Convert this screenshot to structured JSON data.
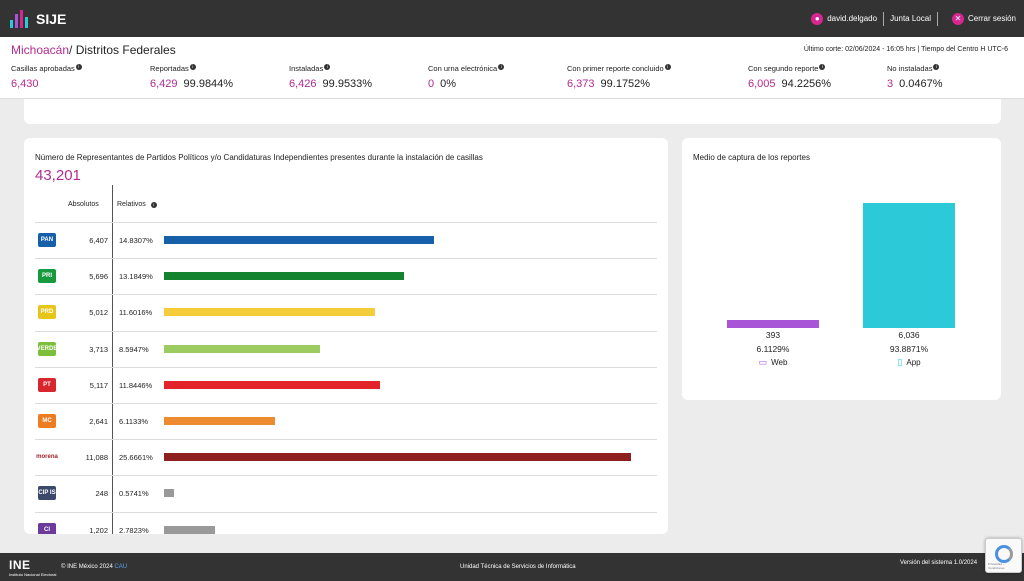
{
  "app": {
    "name": "SIJE"
  },
  "user": {
    "name": "david.delgado",
    "role": "Junta Local",
    "logout": "Cerrar sesión"
  },
  "header": {
    "state": "Michoacán",
    "section": "/ Distritos Federales",
    "cutoff": "Último corte: 02/06/2024 - 16:05 hrs  |  Tiempo del Centro H UTC-6"
  },
  "stats": [
    {
      "label": "Casillas aprobadas",
      "value": "6,430",
      "pct": ""
    },
    {
      "label": "Reportadas",
      "value": "6,429",
      "pct": "99.9844%"
    },
    {
      "label": "Instaladas",
      "value": "6,426",
      "pct": "99.9533%"
    },
    {
      "label": "Con urna electrónica",
      "value": "0",
      "pct": "0%"
    },
    {
      "label": "Con primer reporte concluido",
      "value": "6,373",
      "pct": "99.1752%"
    },
    {
      "label": "Con segundo reporte",
      "value": "6,005",
      "pct": "94.2256%"
    },
    {
      "label": "No instaladas",
      "value": "3",
      "pct": "0.0467%"
    }
  ],
  "representatives": {
    "title": "Número de Representantes de Partidos Políticos y/o Candidaturas Independientes presentes durante la instalación de casillas",
    "total": "43,201",
    "col_absolutos": "Absolutos",
    "col_relativos": "Relativos",
    "rows": [
      {
        "party": "PAN",
        "logo_text": "PAN",
        "logo_bg": "#1560a8",
        "abs": "6,407",
        "rel": "14.8307%",
        "value": 14.8307,
        "color": "#1560a8"
      },
      {
        "party": "PRI",
        "logo_text": "PRI",
        "logo_bg": "#169a3d",
        "abs": "5,696",
        "rel": "13.1849%",
        "value": 13.1849,
        "color": "#13832f"
      },
      {
        "party": "PRD",
        "logo_text": "PRD",
        "logo_bg": "#e6c619",
        "abs": "5,012",
        "rel": "11.6016%",
        "value": 11.6016,
        "color": "#f5cd3a"
      },
      {
        "party": "PVEM",
        "logo_text": "VERDE",
        "logo_bg": "#7bbf3a",
        "abs": "3,713",
        "rel": "8.5947%",
        "value": 8.5947,
        "color": "#9ccc60"
      },
      {
        "party": "PT",
        "logo_text": "PT",
        "logo_bg": "#d7262e",
        "abs": "5,117",
        "rel": "11.8446%",
        "value": 11.8446,
        "color": "#e2232a"
      },
      {
        "party": "MC",
        "logo_text": "MC",
        "logo_bg": "#ee7d22",
        "abs": "2,641",
        "rel": "6.1133%",
        "value": 6.1133,
        "color": "#ee8b30"
      },
      {
        "party": "MORENA",
        "logo_text": "morena",
        "logo_bg": "#ffffff",
        "abs": "11,088",
        "rel": "25.6661%",
        "value": 25.6661,
        "color": "#8e1f1f"
      },
      {
        "party": "Independiente 1",
        "logo_text": "CIP IS",
        "logo_bg": "#3b4a6b",
        "abs": "248",
        "rel": "0.5741%",
        "value": 0.5741,
        "color": "#999999"
      },
      {
        "party": "Independiente 2",
        "logo_text": "CI",
        "logo_bg": "#6b3a9b",
        "abs": "1,202",
        "rel": "2.7823%",
        "value": 2.7823,
        "color": "#999999"
      }
    ]
  },
  "capture": {
    "title": "Medio de captura de los reportes",
    "items": [
      {
        "label": "Web",
        "icon": "laptop-icon",
        "abs": "393",
        "rel": "6.1129%",
        "value": 393,
        "color": "#a855d8"
      },
      {
        "label": "App",
        "icon": "phone-icon",
        "abs": "6,036",
        "rel": "93.8871%",
        "value": 6036,
        "color": "#2ccad8"
      }
    ]
  },
  "footer": {
    "brand": "INE",
    "brand_sub": "Instituto Nacional Electoral",
    "copyright": "© INE México 2024",
    "cau": "CAU",
    "unit": "Unidad Técnica de Servicios de Informática",
    "version": "Versión del sistema 1.0/2024"
  },
  "recaptcha": {
    "text": "Privacidad - Condiciones"
  }
}
